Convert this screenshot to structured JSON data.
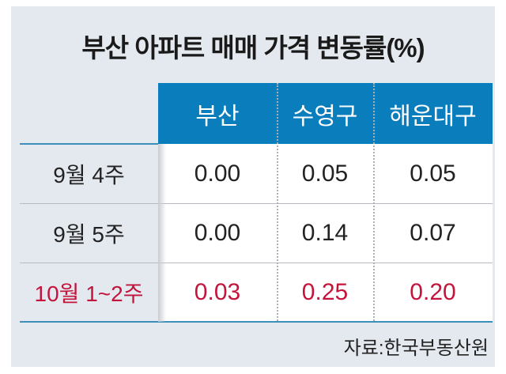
{
  "chart_data": {
    "type": "table",
    "title": "부산 아파트 매매 가격 변동률(%)",
    "columns": [
      "부산",
      "수영구",
      "해운대구"
    ],
    "rows": [
      {
        "label": "9월 4주",
        "values": [
          "0.00",
          "0.05",
          "0.05"
        ],
        "highlight": false
      },
      {
        "label": "9월 5주",
        "values": [
          "0.00",
          "0.14",
          "0.07"
        ],
        "highlight": false
      },
      {
        "label": "10월 1~2주",
        "values": [
          "0.03",
          "0.25",
          "0.20"
        ],
        "highlight": true
      }
    ],
    "source": "자료:한국부동산원",
    "colors": {
      "header": "#0a7dbd",
      "highlight": "#c4143c",
      "background": "#e4e8ef"
    }
  }
}
